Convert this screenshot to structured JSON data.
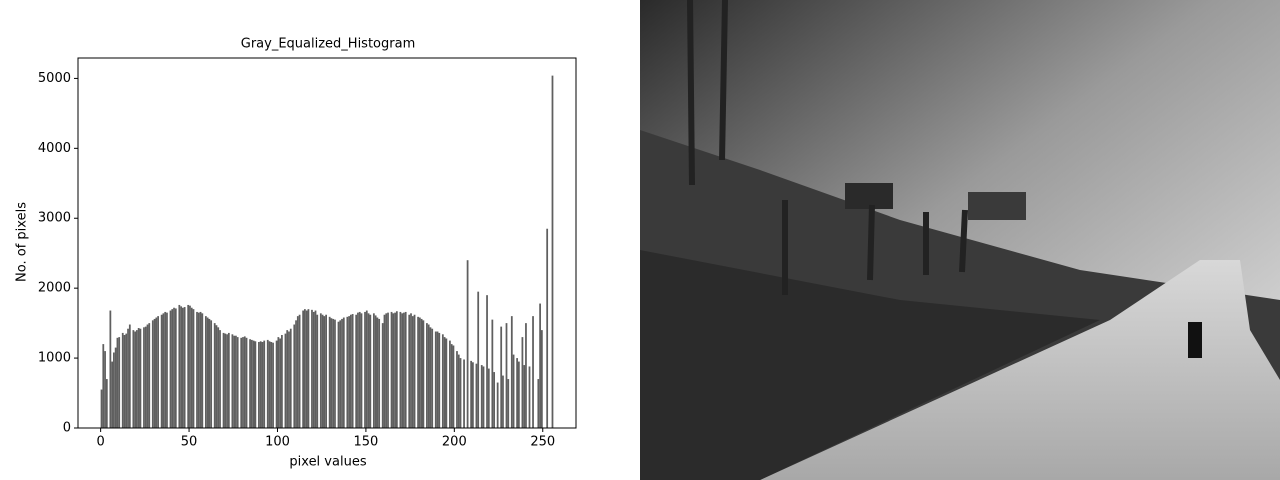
{
  "chart_data": {
    "type": "histogram",
    "title": "Gray_Equalized_Histogram",
    "xlabel": "pixel values",
    "ylabel": "No. of pixels",
    "color": "#5f5f5f",
    "bins": [
      0,
      1,
      2,
      3,
      4,
      5,
      6,
      7,
      8,
      9,
      10,
      11,
      12,
      13,
      14,
      15,
      16,
      17,
      18,
      19,
      20,
      21,
      22,
      23,
      24,
      25,
      26,
      27,
      28,
      29,
      30,
      31,
      32,
      33,
      34,
      35,
      36,
      37,
      38,
      39,
      40,
      41,
      42,
      43,
      44,
      45,
      46,
      47,
      48,
      49,
      50,
      51,
      52,
      53,
      54,
      55,
      56,
      57,
      58,
      59,
      60,
      61,
      62,
      63,
      64,
      65,
      66,
      67,
      68,
      69,
      70,
      71,
      72,
      73,
      74,
      75,
      76,
      77,
      78,
      79,
      80,
      81,
      82,
      83,
      84,
      85,
      86,
      87,
      88,
      89,
      90,
      91,
      92,
      93,
      94,
      95,
      96,
      97,
      98,
      99,
      100,
      101,
      102,
      103,
      104,
      105,
      106,
      107,
      108,
      109,
      110,
      111,
      112,
      113,
      114,
      115,
      116,
      117,
      118,
      119,
      120,
      121,
      122,
      123,
      124,
      125,
      126,
      127,
      128,
      129,
      130,
      131,
      132,
      133,
      134,
      135,
      136,
      137,
      138,
      139,
      140,
      141,
      142,
      143,
      144,
      145,
      146,
      147,
      148,
      149,
      150,
      151,
      152,
      153,
      154,
      155,
      156,
      157,
      158,
      159,
      160,
      161,
      162,
      163,
      164,
      165,
      166,
      167,
      168,
      169,
      170,
      171,
      172,
      173,
      174,
      175,
      176,
      177,
      178,
      179,
      180,
      181,
      182,
      183,
      184,
      185,
      186,
      187,
      188,
      189,
      190,
      191,
      192,
      193,
      194,
      195,
      196,
      197,
      198,
      199,
      200,
      201,
      202,
      203,
      204,
      205,
      206,
      207,
      208,
      209,
      210,
      211,
      212,
      213,
      214,
      215,
      216,
      217,
      218,
      219,
      220,
      221,
      222,
      223,
      224,
      225,
      226,
      227,
      228,
      229,
      230,
      231,
      232,
      233,
      234,
      235,
      236,
      237,
      238,
      239,
      240,
      241,
      242,
      243,
      244,
      245,
      246,
      247,
      248,
      249,
      250,
      251,
      252,
      253,
      254,
      255,
      256
    ],
    "values": [
      550,
      1200,
      1100,
      700,
      0,
      1680,
      950,
      1080,
      1150,
      1290,
      1300,
      0,
      1360,
      1330,
      1350,
      1420,
      1480,
      0,
      1400,
      1380,
      1400,
      1430,
      1420,
      0,
      1440,
      1450,
      1480,
      1500,
      0,
      1540,
      1560,
      1580,
      1600,
      0,
      1620,
      1640,
      1660,
      1650,
      0,
      1680,
      1700,
      1720,
      1710,
      0,
      1760,
      1740,
      1720,
      1730,
      0,
      1760,
      1750,
      1720,
      1700,
      0,
      1660,
      1650,
      1660,
      1640,
      0,
      1600,
      1580,
      1560,
      1540,
      0,
      1500,
      1470,
      1440,
      1400,
      0,
      1360,
      1350,
      1340,
      1360,
      0,
      1340,
      1320,
      1320,
      1300,
      0,
      1290,
      1300,
      1310,
      1290,
      0,
      1270,
      1260,
      1250,
      1240,
      0,
      1230,
      1240,
      1230,
      1250,
      0,
      1260,
      1240,
      1230,
      1220,
      0,
      1250,
      1300,
      1280,
      1330,
      0,
      1350,
      1400,
      1380,
      1420,
      0,
      1480,
      1540,
      1600,
      1620,
      0,
      1680,
      1700,
      1680,
      1700,
      0,
      1690,
      1660,
      1680,
      1620,
      0,
      1640,
      1620,
      1600,
      1620,
      0,
      1590,
      1570,
      1560,
      1550,
      0,
      1520,
      1540,
      1560,
      1580,
      0,
      1590,
      1600,
      1620,
      1630,
      0,
      1620,
      1650,
      1660,
      1640,
      0,
      1660,
      1680,
      1640,
      1620,
      0,
      1640,
      1610,
      1580,
      1560,
      0,
      1500,
      1620,
      1640,
      1650,
      0,
      1660,
      1640,
      1650,
      1670,
      0,
      1660,
      1640,
      1650,
      1660,
      0,
      1620,
      1640,
      1600,
      1620,
      0,
      1590,
      1580,
      1560,
      1540,
      0,
      1500,
      1480,
      1440,
      1420,
      0,
      1380,
      1380,
      1360,
      0,
      1340,
      1300,
      1280,
      0,
      1250,
      1200,
      1180,
      0,
      1100,
      1050,
      1000,
      0,
      980,
      0,
      2400,
      0,
      960,
      940,
      0,
      920,
      1950,
      0,
      900,
      880,
      0,
      1900,
      850,
      0,
      1550,
      800,
      0,
      650,
      0,
      1450,
      750,
      0,
      1500,
      700,
      0,
      1600,
      1050,
      0,
      1000,
      950,
      0,
      1300,
      900,
      1500,
      0,
      880,
      0,
      1600,
      0,
      0,
      700,
      1780,
      1400,
      0,
      0,
      2850,
      0,
      0,
      5040
    ],
    "xlim": [
      -12.8,
      268.8
    ],
    "ylim": [
      0,
      5292
    ],
    "xticks": [
      0,
      50,
      100,
      150,
      200,
      250
    ],
    "yticks": [
      0,
      1000,
      2000,
      3000,
      4000,
      5000
    ]
  }
}
